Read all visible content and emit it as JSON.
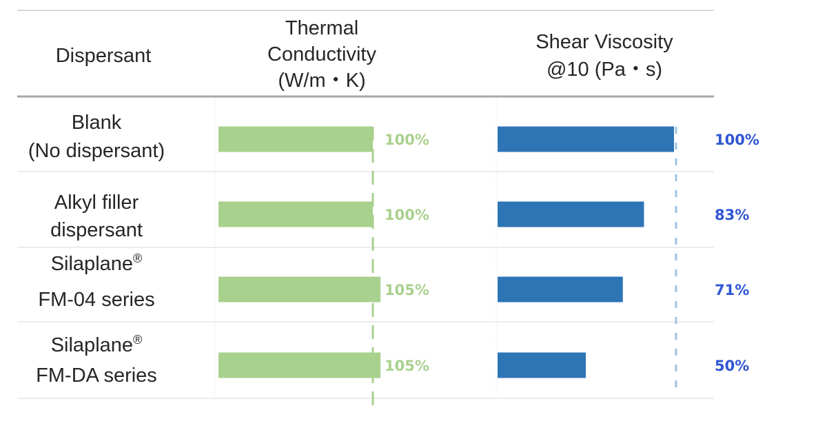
{
  "table": {
    "headers": {
      "dispersant": "Dispersant",
      "thermal_conductivity": [
        "Thermal",
        "Conductivity",
        "(W/m・K)"
      ],
      "shear_viscosity": [
        "Shear Viscosity",
        "@10 (Pa・s)"
      ]
    },
    "rows": [
      {
        "lines": [
          "Blank",
          "(No dispersant)"
        ],
        "sup": ""
      },
      {
        "lines": [
          "Alkyl filler",
          "dispersant"
        ],
        "sup": ""
      },
      {
        "lines": [
          "Silaplane",
          "FM-04 series"
        ],
        "sup": "®"
      },
      {
        "lines": [
          "Silaplane",
          "FM-DA series"
        ],
        "sup": "®"
      }
    ]
  },
  "colors": {
    "thermal_bar": "#a9d18e",
    "shear_bar": "#2e75b6",
    "thermal_label": "#a9d18e",
    "shear_label": "#2f55d4",
    "rule": "#a6a6a6"
  },
  "chart_data": [
    {
      "type": "bar",
      "orientation": "horizontal",
      "title": "Thermal Conductivity (W/m・K)",
      "categories": [
        "Blank (No dispersant)",
        "Alkyl filler dispersant",
        "Silaplane® FM-04 series",
        "Silaplane® FM-DA series"
      ],
      "values": [
        100,
        100,
        105,
        105
      ],
      "data_labels": [
        "100%",
        "100%",
        "105%",
        "105%"
      ],
      "reference_line": 100,
      "xlim": [
        0,
        105
      ]
    },
    {
      "type": "bar",
      "orientation": "horizontal",
      "title": "Shear Viscosity @10 (Pa・s)",
      "categories": [
        "Blank (No dispersant)",
        "Alkyl filler dispersant",
        "Silaplane® FM-04 series",
        "Silaplane® FM-DA series"
      ],
      "values": [
        100,
        83,
        71,
        50
      ],
      "data_labels": [
        "100%",
        "83%",
        "71%",
        "50%"
      ],
      "reference_line": 100,
      "xlim": [
        0,
        100
      ]
    }
  ]
}
